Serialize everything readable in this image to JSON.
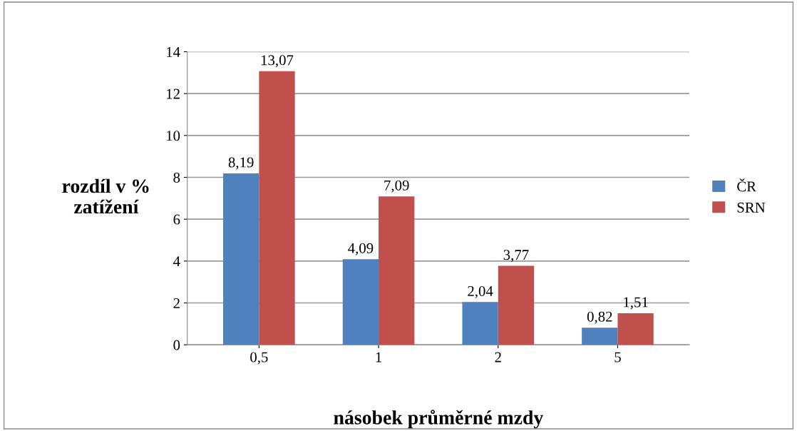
{
  "chart_data": {
    "type": "bar",
    "xlabel": "násobek průměrné mzdy",
    "ylabel": "rozdíl v %\nzatížení",
    "categories": [
      "0,5",
      "1",
      "2",
      "5"
    ],
    "series": [
      {
        "name": "ČR",
        "color": "#4f81bd",
        "values": [
          8.19,
          4.09,
          2.04,
          0.82
        ],
        "value_labels": [
          "8,19",
          "4,09",
          "2,04",
          "0,82"
        ]
      },
      {
        "name": "SRN",
        "color": "#c0504d",
        "values": [
          13.07,
          7.09,
          3.77,
          1.51
        ],
        "value_labels": [
          "13,07",
          "7,09",
          "3,77",
          "1,51"
        ]
      }
    ],
    "ylim": [
      0,
      14
    ],
    "yticks": [
      0,
      2,
      4,
      6,
      8,
      10,
      12,
      14
    ],
    "grid": "y",
    "legend": "right"
  }
}
